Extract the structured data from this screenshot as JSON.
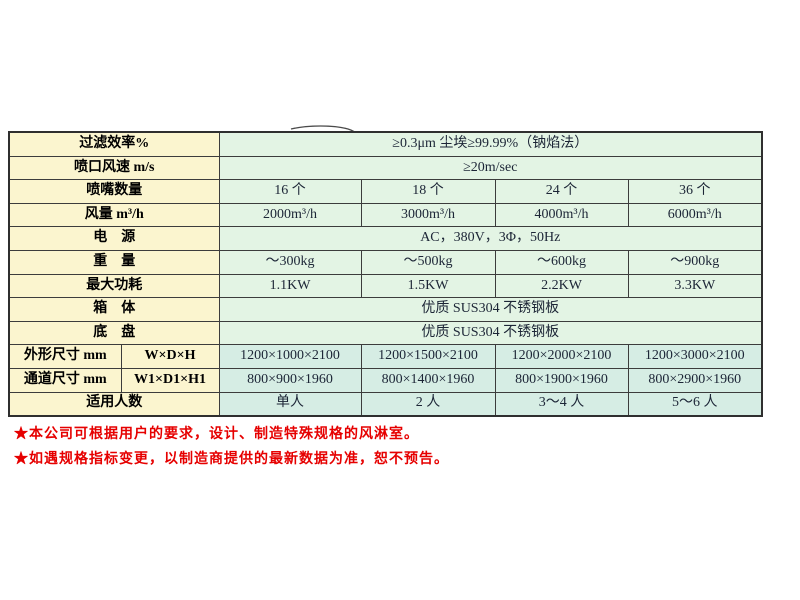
{
  "table": {
    "border_color": "#3c3c3c",
    "label_bg": "#fbf5cf",
    "data_bg": "#e3f4e4",
    "data_bg_alt": "#d6ede4",
    "note_color": "#e60000",
    "rows": [
      {
        "label": "过滤效率%",
        "span": "≥0.3μm 尘埃≥99.99%（钠焰法）"
      },
      {
        "label": "喷口风速 m/s",
        "span": "≥20m/sec"
      },
      {
        "label": "喷嘴数量",
        "cells": [
          "16 个",
          "18 个",
          "24 个",
          "36 个"
        ]
      },
      {
        "label": "风量 m³/h",
        "cells": [
          "2000m³/h",
          "3000m³/h",
          "4000m³/h",
          "6000m³/h"
        ]
      },
      {
        "label": "电　源",
        "span": "AC，380V，3Φ，50Hz"
      },
      {
        "label": "重　量",
        "cells": [
          "～300kg",
          "～500kg",
          "～600kg",
          "～900kg"
        ]
      },
      {
        "label": "最大功耗",
        "cells": [
          "1.1KW",
          "1.5KW",
          "2.2KW",
          "3.3KW"
        ]
      },
      {
        "label": "箱　体",
        "span": "优质 SUS304 不锈钢板"
      },
      {
        "label": "底　盘",
        "span": "优质 SUS304 不锈钢板"
      },
      {
        "label": "外形尺寸 mm",
        "label2": "W×D×H",
        "alt": true,
        "cells": [
          "1200×1000×2100",
          "1200×1500×2100",
          "1200×2000×2100",
          "1200×3000×2100"
        ]
      },
      {
        "label": "通道尺寸 mm",
        "label2": "W1×D1×H1",
        "alt": true,
        "cells": [
          "800×900×1960",
          "800×1400×1960",
          "800×1900×1960",
          "800×2900×1960"
        ]
      },
      {
        "label": "适用人数",
        "alt": true,
        "cells": [
          "单人",
          "2 人",
          "3～4 人",
          "5～6 人"
        ]
      }
    ]
  },
  "notes": {
    "items": [
      "★本公司可根据用户的要求，设计、制造特殊规格的风淋室。",
      "★如遇规格指标变更，以制造商提供的最新数据为准，恕不预告。"
    ]
  }
}
